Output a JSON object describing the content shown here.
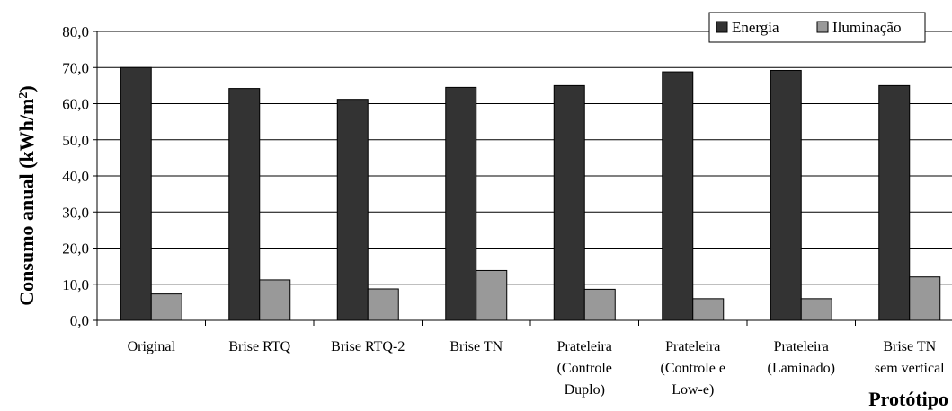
{
  "chart_data": {
    "type": "bar",
    "title": "",
    "xlabel": "Protótipo",
    "ylabel": "Consumo anual (kWh/m²)",
    "ylabel_parts": {
      "main": "Consumo anual (kWh/m",
      "superscript": "2",
      "close": ")"
    },
    "ylim": [
      0,
      80
    ],
    "yticks": [
      "0,0",
      "10,0",
      "20,0",
      "30,0",
      "40,0",
      "50,0",
      "60,0",
      "70,0",
      "80,0"
    ],
    "grid": true,
    "legend_position": "top-right",
    "categories": [
      [
        "Original"
      ],
      [
        "Brise RTQ"
      ],
      [
        "Brise RTQ-2"
      ],
      [
        "Brise TN"
      ],
      [
        "Prateleira",
        "(Controle",
        "Duplo)"
      ],
      [
        "Prateleira",
        "(Controle e",
        "Low-e)"
      ],
      [
        "Prateleira",
        "(Laminado)"
      ],
      [
        "Brise TN",
        "sem vertical"
      ]
    ],
    "series": [
      {
        "name": "Energia",
        "color": "#333333",
        "values": [
          70.0,
          64.2,
          61.2,
          64.5,
          65.0,
          68.8,
          69.2,
          65.0
        ]
      },
      {
        "name": "Iluminação",
        "color": "#999999",
        "values": [
          7.3,
          11.2,
          8.7,
          13.8,
          8.6,
          6.0,
          6.0,
          12.0
        ]
      }
    ]
  }
}
